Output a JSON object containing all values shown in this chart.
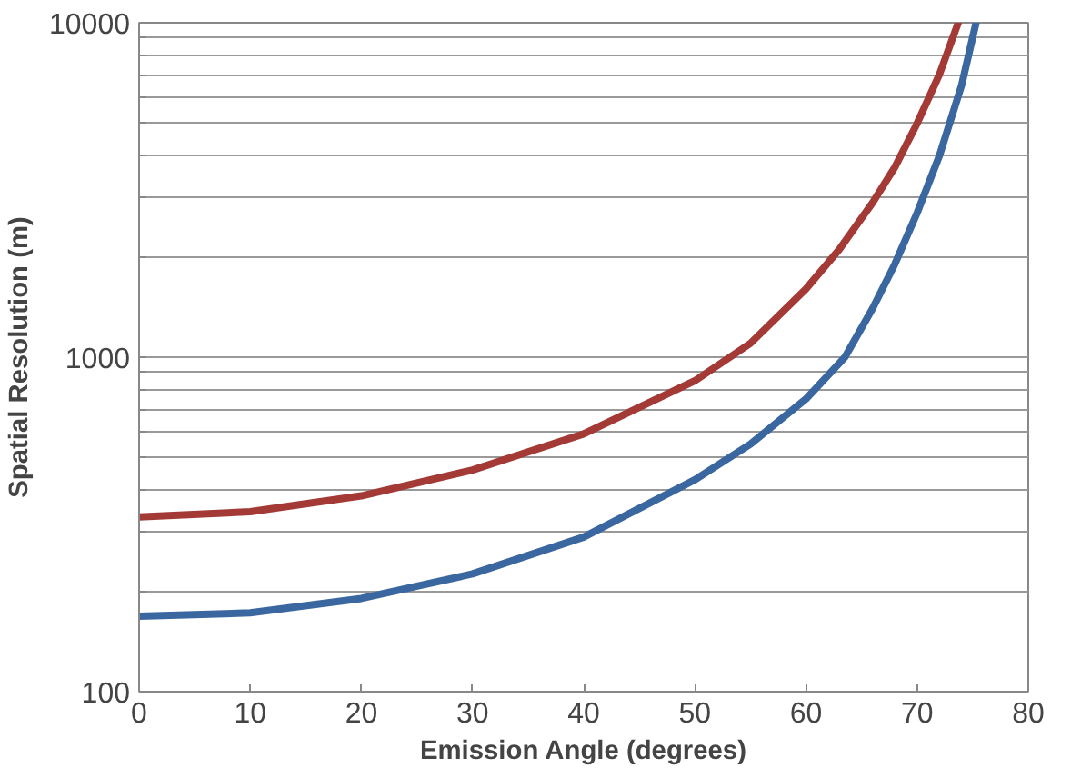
{
  "chart_data": {
    "type": "line",
    "xlabel": "Emission Angle (degrees)",
    "ylabel": "Spatial Resolution (m)",
    "log": "y",
    "grid": "y",
    "xlim": [
      0,
      80
    ],
    "ylim": [
      100,
      10000
    ],
    "xticks": [
      0,
      10,
      20,
      30,
      40,
      50,
      60,
      70,
      80
    ],
    "yticks": [
      100,
      {
        "value": 200,
        "label": null
      },
      {
        "value": 300,
        "label": null
      },
      {
        "value": 400,
        "label": null
      },
      {
        "value": 500,
        "label": null
      },
      {
        "value": 600,
        "label": null
      },
      {
        "value": 700,
        "label": null
      },
      {
        "value": 800,
        "label": null
      },
      {
        "value": 900,
        "label": null
      },
      1000,
      {
        "value": 2000,
        "label": null
      },
      {
        "value": 3000,
        "label": null
      },
      {
        "value": 4000,
        "label": null
      },
      {
        "value": 5000,
        "label": null
      },
      {
        "value": 6000,
        "label": null
      },
      {
        "value": 7000,
        "label": null
      },
      {
        "value": 8000,
        "label": null
      },
      {
        "value": 9000,
        "label": null
      },
      10000
    ],
    "series": [
      {
        "color": "#a33a36",
        "x": [
          0,
          10,
          20,
          30,
          40,
          50,
          55,
          60,
          63,
          66,
          68,
          70,
          72,
          73.7
        ],
        "values": [
          333,
          345,
          385,
          460,
          590,
          850,
          1100,
          1600,
          2100,
          2900,
          3700,
          5000,
          7000,
          10000
        ]
      },
      {
        "color": "#3a67a0",
        "x": [
          0,
          10,
          20,
          30,
          40,
          50,
          55,
          60,
          63.5,
          66,
          68,
          70,
          72,
          74,
          75.3
        ],
        "values": [
          168,
          172,
          190,
          225,
          290,
          430,
          550,
          750,
          1000,
          1400,
          1900,
          2700,
          4000,
          6500,
          10000
        ]
      }
    ]
  }
}
